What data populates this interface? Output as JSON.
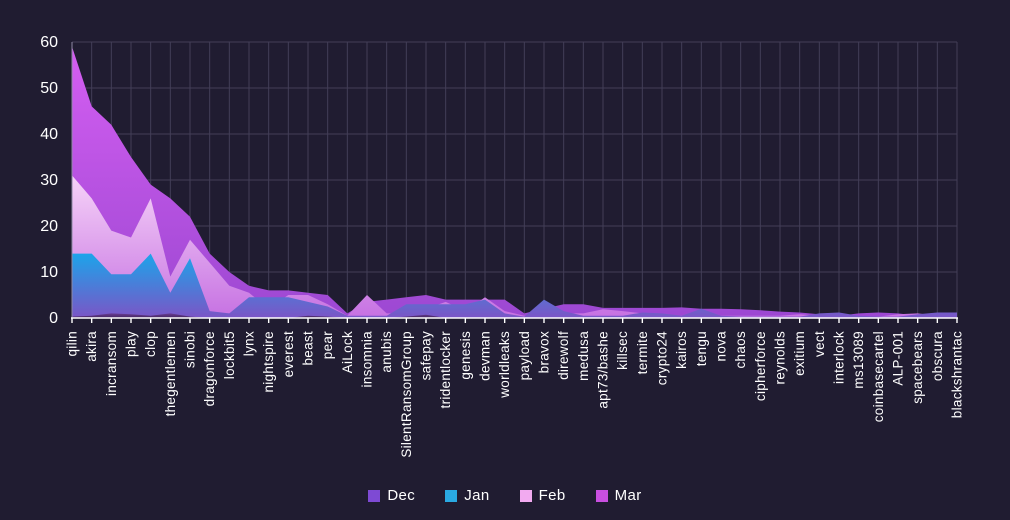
{
  "colors": {
    "background": "#201c31",
    "grid": "#433e58",
    "axis_left": "#8e89a3",
    "axis_bottom": "#ffffff",
    "tick": "#ffffff",
    "label_text": "#ffffff"
  },
  "chart_data": {
    "type": "area",
    "overlapping_series": true,
    "draw_order": "Mar back, then Feb, Jan, Dec in front",
    "title": "",
    "xlabel": "",
    "ylabel": "",
    "ylim": [
      0,
      60
    ],
    "yticks": [
      0,
      10,
      20,
      30,
      40,
      50,
      60
    ],
    "grid": true,
    "legend_position": "bottom-center",
    "categories": [
      "qilin",
      "akira",
      "incransom",
      "play",
      "clop",
      "thegentlemen",
      "sinobi",
      "dragonforce",
      "lockbit5",
      "lynx",
      "nightspire",
      "everest",
      "beast",
      "pear",
      "AiLock",
      "insomnia",
      "anubis",
      "SilentRansomGroup",
      "safepay",
      "tridentlocker",
      "genesis",
      "devman",
      "worldleaks",
      "payload",
      "bravox",
      "direwolf",
      "medusa",
      "apt73/bashe",
      "killsec",
      "termite",
      "crypto24",
      "kairos",
      "tengu",
      "nova",
      "chaos",
      "cipherforce",
      "reynolds",
      "exitium",
      "vect",
      "interlock",
      "ms13089",
      "coinbasecartel",
      "ALP-001",
      "spacebears",
      "obscura",
      "blackshrantac"
    ],
    "series": [
      {
        "name": "Dec",
        "color": "#7e4ad4",
        "gradient_top": "#6a3d96",
        "gradient_bottom": "#42265c",
        "values": [
          0.3,
          0.5,
          1,
          0.8,
          0.5,
          1,
          0.3,
          0,
          0,
          0,
          0,
          0,
          0.5,
          0.3,
          0,
          0,
          0,
          0.3,
          0.7,
          0,
          0,
          0,
          0,
          0,
          0,
          0,
          0,
          0,
          0,
          0,
          0,
          0,
          0,
          0,
          0,
          0,
          0,
          0,
          0,
          0,
          0,
          0,
          0,
          0,
          0,
          0
        ]
      },
      {
        "name": "Jan",
        "color": "#2aa9e2",
        "gradient_top": "#1ca4ea",
        "gradient_bottom": "#7b55c6",
        "values": [
          14,
          14,
          9.5,
          9.5,
          14,
          5.5,
          13,
          1.5,
          1,
          4.5,
          4.5,
          4.5,
          3.5,
          2.5,
          0.5,
          0.5,
          0.5,
          3,
          3,
          3,
          3,
          4,
          1,
          0.3,
          4,
          1.5,
          0.5,
          0.5,
          0.5,
          1.2,
          1,
          0.5,
          2,
          0.5,
          0.3,
          0.3,
          0.3,
          0.3,
          1,
          1.2,
          0.5,
          0.3,
          0.3,
          0.8,
          1.2,
          1.2
        ]
      },
      {
        "name": "Feb",
        "color": "#f2aaf0",
        "gradient_top": "#f6d3f8",
        "gradient_bottom": "#c671e2",
        "values": [
          31,
          26,
          19,
          17.5,
          26,
          9,
          17,
          12,
          7,
          5.5,
          2,
          5,
          5,
          3,
          0.5,
          5,
          1,
          1,
          2,
          3.5,
          1.5,
          4.5,
          1.5,
          0.5,
          1,
          1,
          1,
          1.9,
          1.5,
          1,
          0.5,
          0.5,
          0.5,
          0.5,
          0.5,
          0.5,
          0.5,
          0.8,
          0.5,
          0.3,
          0.3,
          0.3,
          0.8,
          1,
          0.5,
          0.3
        ]
      },
      {
        "name": "Mar",
        "color": "#c94fe0",
        "gradient_top": "#d55ef2",
        "gradient_bottom": "#9c48d2",
        "values": [
          59,
          46,
          42,
          35,
          29,
          26,
          22,
          14,
          10,
          7,
          6,
          6,
          5.5,
          5,
          1,
          3.5,
          4,
          4.5,
          5,
          4,
          4,
          4,
          4,
          1,
          2,
          3,
          3,
          2.2,
          2.2,
          2.2,
          2.2,
          2.3,
          2,
          2,
          1.9,
          1.7,
          1.4,
          1.2,
          0.8,
          0.5,
          1,
          1.2,
          1,
          0.5,
          0.3,
          0.3
        ]
      }
    ]
  }
}
